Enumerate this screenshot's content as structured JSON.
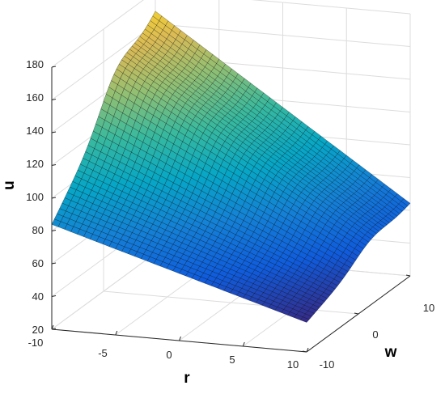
{
  "chart_data": {
    "type": "surface",
    "title": "",
    "xlabel": "r",
    "ylabel": "w",
    "zlabel": "u",
    "xlim": [
      -10,
      10
    ],
    "ylim": [
      -10,
      10
    ],
    "zlim": [
      20,
      180
    ],
    "x_ticks": [
      "-10",
      "-5",
      "0",
      "5",
      "10"
    ],
    "y_ticks": [
      "-10",
      "0",
      "10"
    ],
    "z_ticks": [
      "20",
      "40",
      "60",
      "80",
      "100",
      "120",
      "140",
      "160",
      "180"
    ],
    "grid": true,
    "colormap": "parula",
    "surface_edge_color": "#000000",
    "mesh_resolution": [
      41,
      41
    ],
    "corner_values": {
      "r_min_w_min": 84,
      "r_min_w_max": 167,
      "r_max_w_min": 38,
      "r_max_w_max": 64
    },
    "ridge": "along r at w≈3: u falls from ~170 (r=-10) to ~62 (r=10)"
  }
}
